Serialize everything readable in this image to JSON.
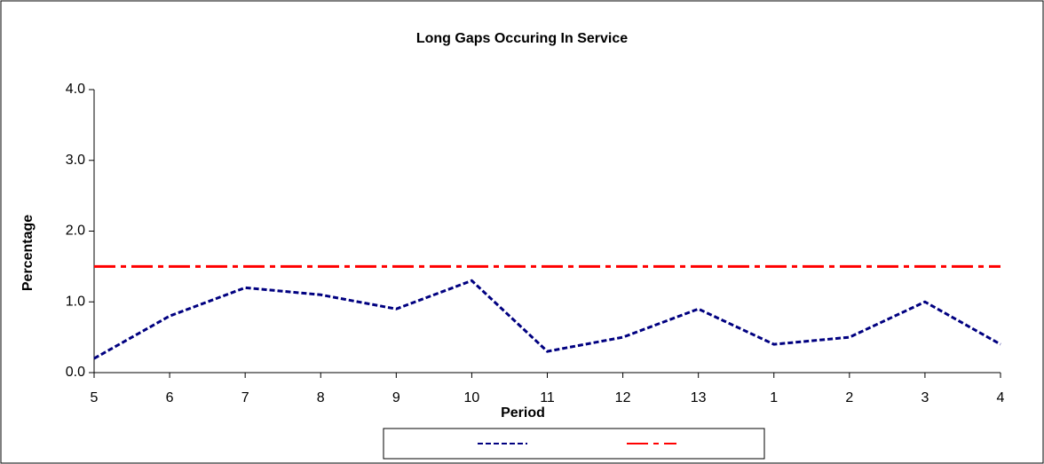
{
  "chart_data": {
    "type": "line",
    "title": "Long Gaps Occuring In Service",
    "x_label": "Period",
    "y_label": "Percentage",
    "categories": [
      "5",
      "6",
      "7",
      "8",
      "9",
      "10",
      "11",
      "12",
      "13",
      "1",
      "2",
      "3",
      "4"
    ],
    "series": [
      {
        "color": "#000080",
        "style": "dashed",
        "values": [
          0.2,
          0.8,
          1.2,
          1.1,
          0.9,
          1.3,
          0.3,
          0.5,
          0.9,
          0.4,
          0.5,
          1.0,
          0.4
        ]
      },
      {
        "color": "#ff0000",
        "style": "dashdot",
        "values": [
          1.5,
          1.5,
          1.5,
          1.5,
          1.5,
          1.5,
          1.5,
          1.5,
          1.5,
          1.5,
          1.5,
          1.5,
          1.5
        ]
      }
    ],
    "ylim": [
      0,
      4
    ],
    "yticks": [
      {
        "value": 0,
        "label": "0.0"
      },
      {
        "value": 1,
        "label": "1.0"
      },
      {
        "value": 2,
        "label": "2.0"
      },
      {
        "value": 3,
        "label": "3.0"
      },
      {
        "value": 4,
        "label": "4.0"
      }
    ],
    "grid": false,
    "legend": "bottom"
  }
}
